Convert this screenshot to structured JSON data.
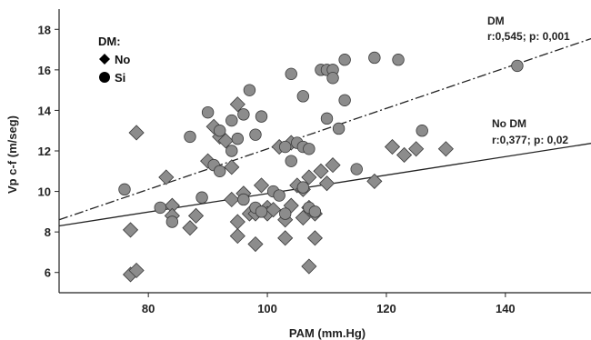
{
  "chart_data": {
    "type": "scatter",
    "title": "",
    "xlabel": "PAM (mm.Hg)",
    "ylabel": "Vp c-f (m/seg)",
    "xlim": [
      65,
      155
    ],
    "ylim": [
      5,
      19
    ],
    "x_ticks": [
      "80",
      "100",
      "120",
      "140"
    ],
    "x_tick_values": [
      80,
      100,
      120,
      140
    ],
    "y_ticks": [
      "6",
      "8",
      "10",
      "12",
      "14",
      "16",
      "18"
    ],
    "y_tick_values": [
      6,
      8,
      10,
      12,
      14,
      16,
      18
    ],
    "grid": false,
    "legend": {
      "title": "DM:",
      "placement": "top-left",
      "entries": [
        {
          "label": "No",
          "marker": "diamond"
        },
        {
          "label": "Si",
          "marker": "circle"
        }
      ]
    },
    "colors": {
      "marker_fill": "#8c8c8c",
      "marker_stroke": "#3a3a3a",
      "line": "#222222"
    },
    "series": [
      {
        "name": "No",
        "marker": "diamond",
        "points": [
          [
            77,
            5.9
          ],
          [
            78,
            6.1
          ],
          [
            77,
            8.1
          ],
          [
            78,
            12.9
          ],
          [
            83,
            10.7
          ],
          [
            84,
            9.3
          ],
          [
            84,
            8.8
          ],
          [
            87,
            8.2
          ],
          [
            88,
            8.8
          ],
          [
            90,
            11.5
          ],
          [
            91,
            13.2
          ],
          [
            92,
            12.7
          ],
          [
            93,
            12.5
          ],
          [
            94,
            11.2
          ],
          [
            94,
            9.6
          ],
          [
            95,
            14.3
          ],
          [
            95,
            8.5
          ],
          [
            95,
            7.8
          ],
          [
            96,
            9.9
          ],
          [
            97,
            8.9
          ],
          [
            98,
            7.4
          ],
          [
            98,
            8.9
          ],
          [
            99,
            10.3
          ],
          [
            100,
            9.2
          ],
          [
            100,
            8.9
          ],
          [
            101,
            9.1
          ],
          [
            102,
            12.2
          ],
          [
            103,
            8.6
          ],
          [
            103,
            7.7
          ],
          [
            104,
            12.4
          ],
          [
            104,
            9.3
          ],
          [
            105,
            10.3
          ],
          [
            106,
            10.1
          ],
          [
            106,
            8.7
          ],
          [
            107,
            10.7
          ],
          [
            107,
            6.3
          ],
          [
            107,
            9.2
          ],
          [
            108,
            7.7
          ],
          [
            108,
            8.9
          ],
          [
            109,
            11.0
          ],
          [
            110,
            10.4
          ],
          [
            111,
            11.3
          ],
          [
            118,
            10.5
          ],
          [
            121,
            12.2
          ],
          [
            123,
            11.8
          ],
          [
            125,
            12.1
          ],
          [
            130,
            12.1
          ]
        ]
      },
      {
        "name": "Si",
        "marker": "circle",
        "points": [
          [
            76,
            10.1
          ],
          [
            82,
            9.2
          ],
          [
            84,
            8.5
          ],
          [
            87,
            12.7
          ],
          [
            89,
            9.7
          ],
          [
            90,
            13.9
          ],
          [
            91,
            11.3
          ],
          [
            92,
            11.0
          ],
          [
            92,
            13.0
          ],
          [
            94,
            12.0
          ],
          [
            94,
            13.5
          ],
          [
            95,
            12.6
          ],
          [
            96,
            9.6
          ],
          [
            96,
            13.8
          ],
          [
            97,
            15.0
          ],
          [
            98,
            9.2
          ],
          [
            98,
            12.8
          ],
          [
            99,
            13.7
          ],
          [
            99,
            9.0
          ],
          [
            101,
            10.0
          ],
          [
            102,
            9.8
          ],
          [
            103,
            8.9
          ],
          [
            103,
            12.2
          ],
          [
            104,
            11.5
          ],
          [
            104,
            15.8
          ],
          [
            105,
            12.4
          ],
          [
            106,
            10.2
          ],
          [
            106,
            14.7
          ],
          [
            106,
            12.2
          ],
          [
            107,
            12.1
          ],
          [
            107,
            9.2
          ],
          [
            108,
            9.0
          ],
          [
            109,
            16.0
          ],
          [
            110,
            13.6
          ],
          [
            110,
            16.0
          ],
          [
            111,
            16.0
          ],
          [
            111,
            15.6
          ],
          [
            112,
            13.1
          ],
          [
            113,
            16.5
          ],
          [
            113,
            14.5
          ],
          [
            115,
            11.1
          ],
          [
            118,
            16.6
          ],
          [
            122,
            16.5
          ],
          [
            126,
            13.0
          ],
          [
            142,
            16.2
          ]
        ]
      }
    ],
    "fit_lines": [
      {
        "name": "DM",
        "style": "dash-dot",
        "x": [
          65,
          155
        ],
        "y": [
          8.6,
          17.6
        ]
      },
      {
        "name": "No DM",
        "style": "solid",
        "x": [
          65,
          155
        ],
        "y": [
          8.3,
          12.4
        ]
      }
    ],
    "annotations": [
      {
        "id": "dm",
        "line1": "DM",
        "line2": "r:0,545; p: 0,001"
      },
      {
        "id": "nodm",
        "line1": "No DM",
        "line2": "r:0,377; p: 0,02"
      }
    ]
  }
}
